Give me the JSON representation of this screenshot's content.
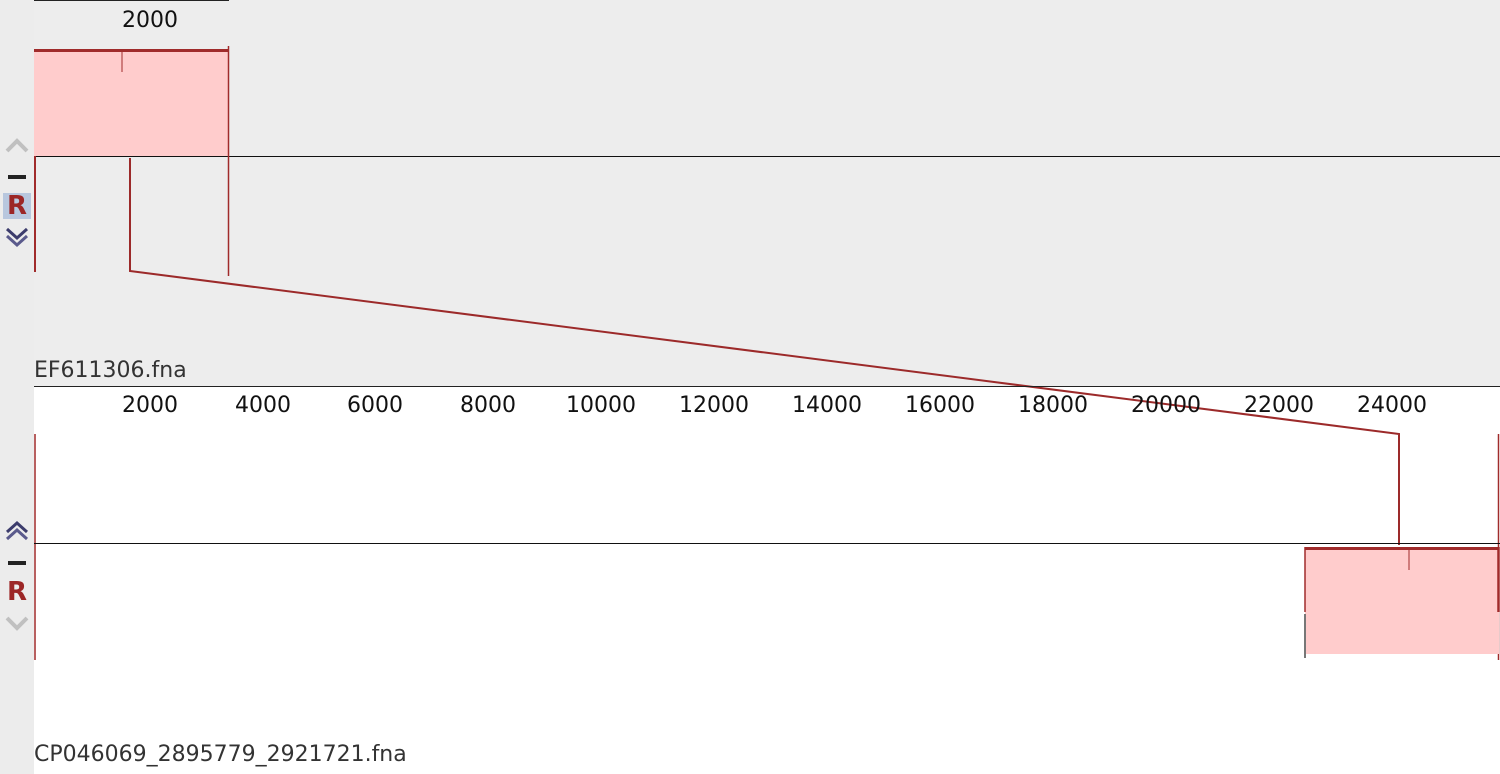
{
  "genome1": {
    "name": "EF611306.fna",
    "ruler_ticks": [
      "2000"
    ],
    "controls": {
      "up": "up-arrow-icon",
      "minus": "minus-icon",
      "reverse_label": "R",
      "down": "down-arrow-icon"
    }
  },
  "genome2": {
    "name": "CP046069_2895779_2921721.fna",
    "ruler_ticks": [
      "2000",
      "4000",
      "6000",
      "8000",
      "10000",
      "12000",
      "14000",
      "16000",
      "18000",
      "20000",
      "22000",
      "24000"
    ],
    "controls": {
      "up": "up-arrow-icon",
      "minus": "minus-icon",
      "reverse_label": "R",
      "down": "down-arrow-icon"
    }
  },
  "colors": {
    "lcb_fill": "#ffcccc",
    "lcb_line": "#a02b2b",
    "connector": "#9c2a2a"
  }
}
